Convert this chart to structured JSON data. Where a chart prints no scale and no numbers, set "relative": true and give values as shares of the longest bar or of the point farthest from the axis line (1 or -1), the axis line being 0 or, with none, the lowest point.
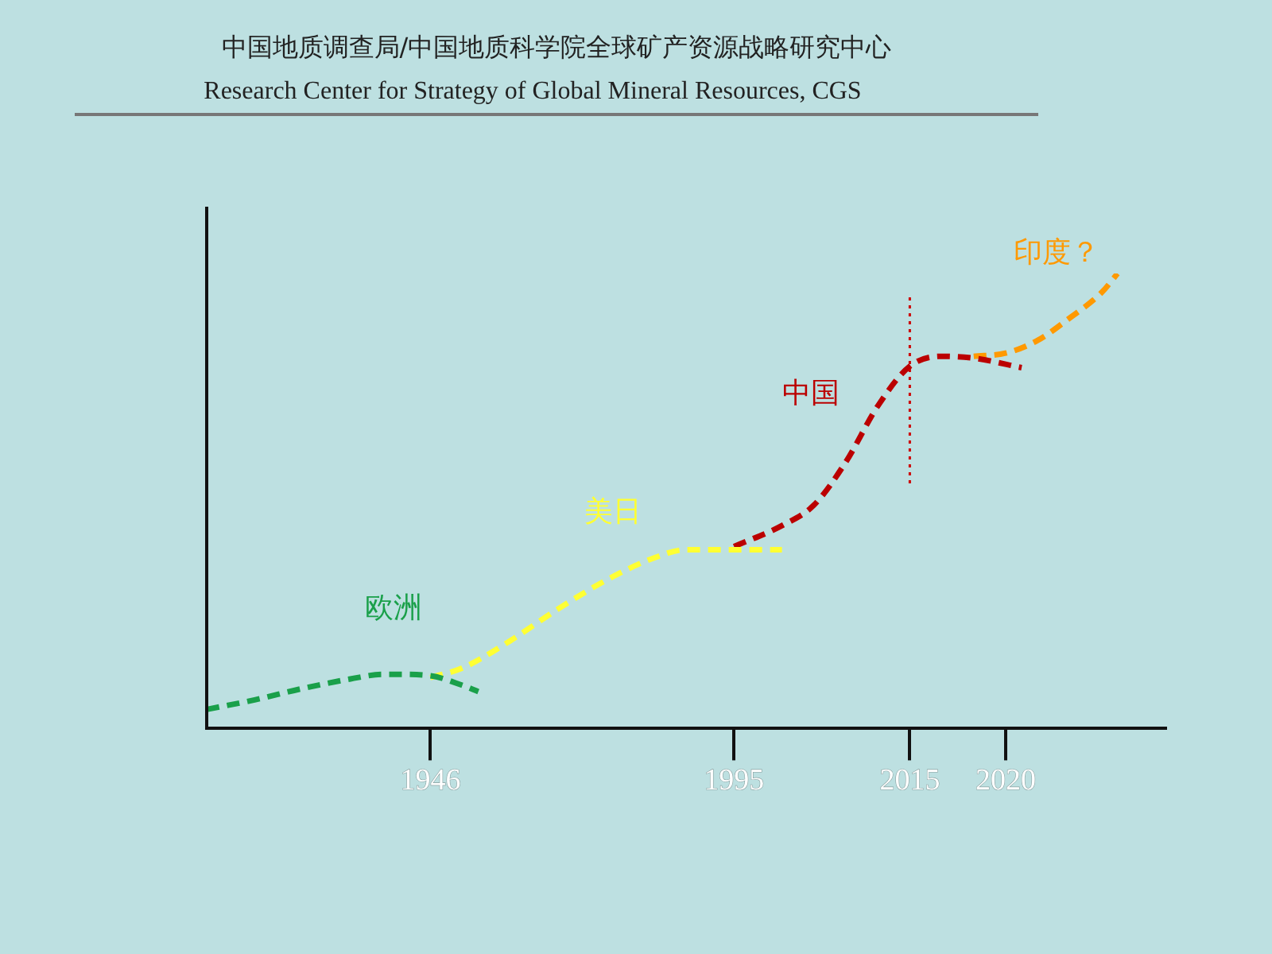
{
  "chart_data": {
    "type": "line",
    "title": "中国地质调查局/中国地质科学院全球矿产资源战略研究中心",
    "subtitle": "Research Center for Strategy of Global Mineral Resources, CGS",
    "relative": true,
    "legend": false,
    "line_style": "dashed",
    "marker": "none",
    "categories": [
      null,
      null,
      null,
      null,
      null,
      null,
      null,
      null,
      null,
      null,
      null,
      null,
      null,
      null,
      "1946",
      null,
      null,
      null,
      null,
      null,
      null,
      null,
      null,
      null,
      null,
      null,
      null,
      null,
      null,
      null,
      null,
      null,
      null,
      "1995",
      null,
      null,
      null,
      null,
      null,
      null,
      null,
      null,
      null,
      null,
      "2015",
      null,
      null,
      null,
      null,
      null,
      "2020",
      null,
      null,
      null,
      null,
      null,
      null,
      null,
      null,
      null,
      null
    ],
    "series": [
      {
        "name": "欧洲",
        "color": "#1aa04a",
        "values": [
          0.042,
          null,
          null,
          0.063,
          null,
          null,
          0.088,
          null,
          null,
          0.109,
          null,
          0.119,
          0.119,
          null,
          0.116,
          null,
          0.095,
          0.081,
          null,
          null,
          null,
          null,
          null,
          null,
          null,
          null,
          null,
          null,
          null,
          null,
          null,
          null,
          null,
          null,
          null,
          null,
          null,
          null,
          null,
          null,
          null,
          null,
          null,
          null,
          null,
          null,
          null,
          null,
          null,
          null,
          null,
          null,
          null,
          null,
          null,
          null,
          null,
          null,
          null,
          null,
          null
        ]
      },
      {
        "name": "美日",
        "color": "#ffff33",
        "values": [
          null,
          null,
          null,
          null,
          null,
          null,
          null,
          null,
          null,
          null,
          null,
          null,
          null,
          null,
          0.112,
          null,
          0.133,
          null,
          null,
          0.193,
          null,
          null,
          0.263,
          null,
          null,
          0.326,
          null,
          null,
          0.375,
          null,
          0.393,
          null,
          null,
          0.393,
          null,
          null,
          0.393,
          null,
          null,
          null,
          null,
          null,
          null,
          null,
          null,
          null,
          null,
          null,
          null,
          null,
          null,
          null,
          null,
          null,
          null,
          null,
          null,
          null,
          null,
          null,
          null
        ]
      },
      {
        "name": "中国",
        "color": "#bb0000",
        "values": [
          null,
          null,
          null,
          null,
          null,
          null,
          null,
          null,
          null,
          null,
          null,
          null,
          null,
          null,
          null,
          null,
          null,
          null,
          null,
          null,
          null,
          null,
          null,
          null,
          null,
          null,
          null,
          null,
          null,
          null,
          null,
          null,
          null,
          0.4,
          null,
          null,
          0.446,
          null,
          0.491,
          null,
          0.586,
          null,
          0.709,
          null,
          0.796,
          null,
          0.818,
          null,
          0.814,
          null,
          null,
          0.793,
          null,
          null,
          null,
          null,
          null,
          null,
          null,
          null,
          null
        ]
      },
      {
        "name": "印度？",
        "color": "#ff9900",
        "values": [
          null,
          null,
          null,
          null,
          null,
          null,
          null,
          null,
          null,
          null,
          null,
          null,
          null,
          null,
          null,
          null,
          null,
          null,
          null,
          null,
          null,
          null,
          null,
          null,
          null,
          null,
          null,
          null,
          null,
          null,
          null,
          null,
          null,
          null,
          null,
          null,
          null,
          null,
          null,
          null,
          null,
          null,
          null,
          null,
          null,
          null,
          null,
          null,
          0.818,
          null,
          0.825,
          null,
          0.853,
          null,
          0.902,
          null,
          0.958,
          1,
          null,
          null,
          null
        ]
      }
    ],
    "ref_lines": [
      {
        "axis": "x",
        "value": "2015",
        "color": "#cc0000",
        "line_style": "dotted"
      }
    ]
  }
}
